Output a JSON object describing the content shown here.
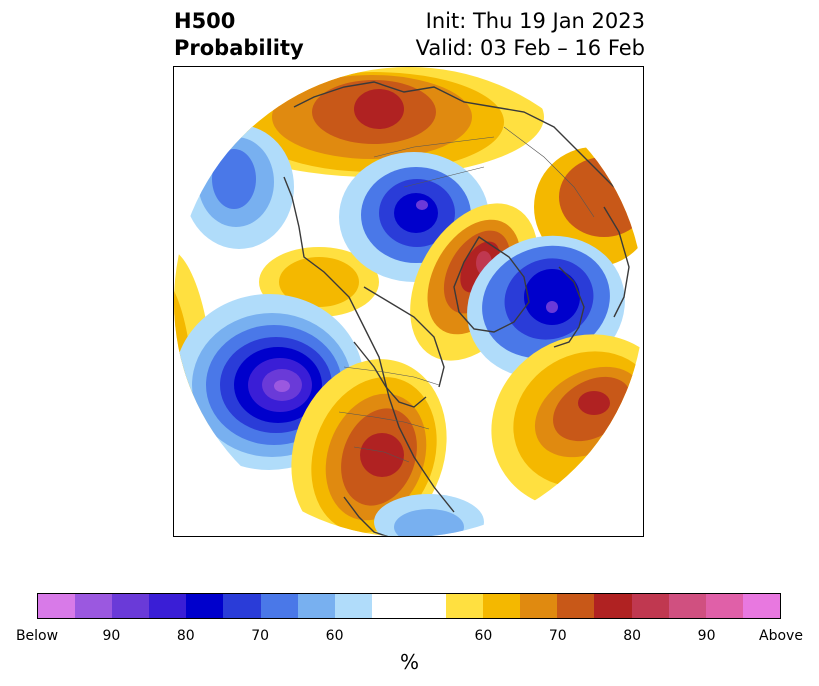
{
  "title": {
    "left_line1": "H500",
    "left_line2": "Probability",
    "right_line1": "Init: Thu 19 Jan 2023",
    "right_line2": "Valid: 03 Feb – 16 Feb"
  },
  "colorbar": {
    "colors": [
      "#d87ae8",
      "#9b58e0",
      "#6a3ad8",
      "#3a1ed6",
      "#0000cc",
      "#2a3cd8",
      "#4a78e8",
      "#78b0f0",
      "#b0dcfa",
      "#ffffff",
      "#ffe040",
      "#f4b800",
      "#e08a10",
      "#c85818",
      "#b02222",
      "#c03850",
      "#d05080",
      "#e060a8",
      "#e878e0"
    ],
    "tick_labels": [
      "Below",
      "90",
      "80",
      "70",
      "60",
      "60",
      "70",
      "80",
      "90",
      "Above"
    ],
    "unit_label": "%"
  },
  "map": {
    "projection": "north-polar-stereographic",
    "anomaly_centers": [
      {
        "region": "north-pacific",
        "sign": "below",
        "peak_percent": 90
      },
      {
        "region": "hudson-bay",
        "sign": "below",
        "peak_percent": 80
      },
      {
        "region": "scandinavia",
        "sign": "below",
        "peak_percent": 85
      },
      {
        "region": "siberia",
        "sign": "above",
        "peak_percent": 80
      },
      {
        "region": "greenland",
        "sign": "above",
        "peak_percent": 85
      },
      {
        "region": "eastern-north-america",
        "sign": "above",
        "peak_percent": 80
      },
      {
        "region": "east-atlantic",
        "sign": "above",
        "peak_percent": 80
      }
    ]
  }
}
